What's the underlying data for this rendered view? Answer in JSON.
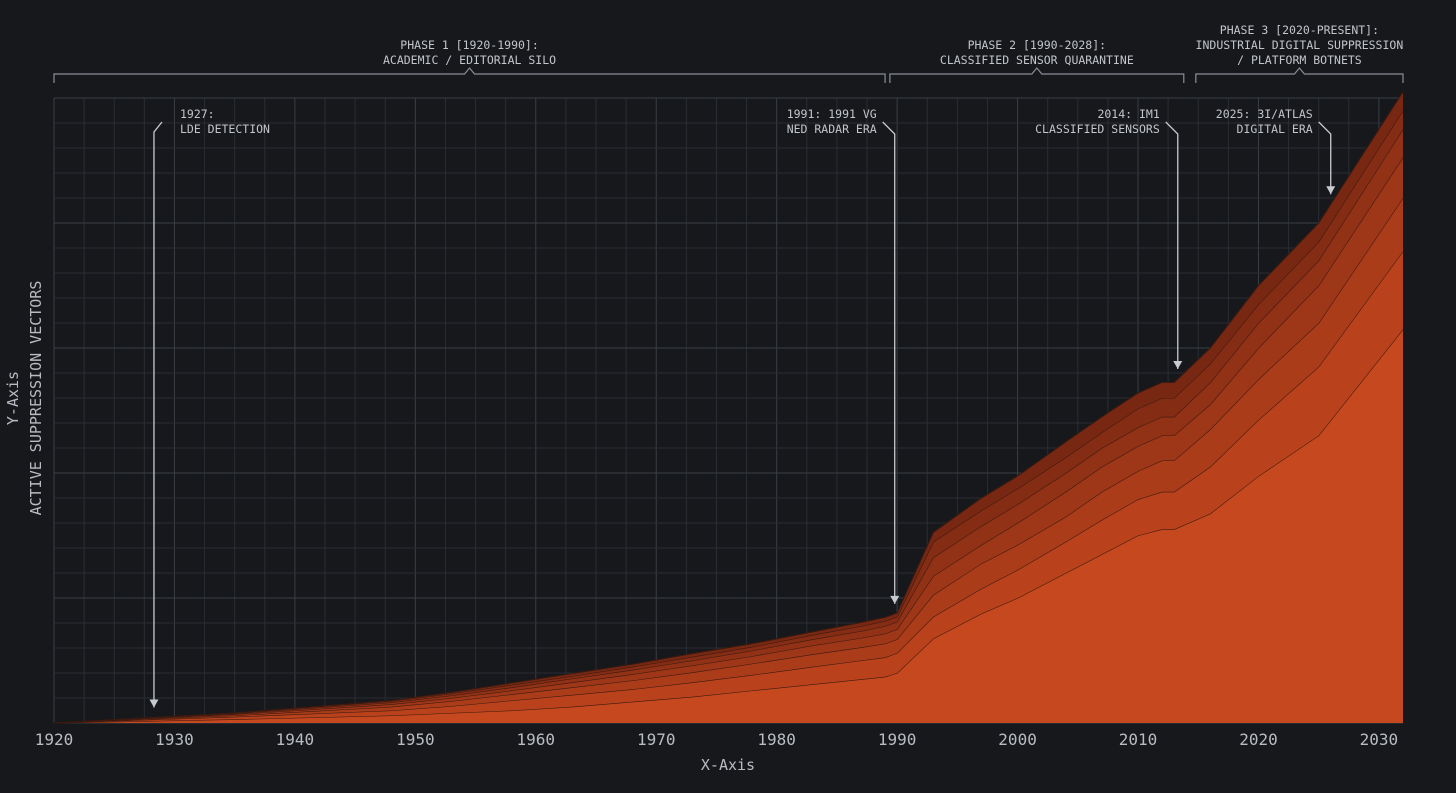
{
  "chart_data": {
    "type": "area",
    "title": "",
    "xlabel": "X-Axis",
    "ylabel_lines": [
      "Y-Axis",
      "ACTIVE SUPPRESSION VECTORS"
    ],
    "xlim": [
      1920,
      2032
    ],
    "ylim": [
      0,
      100
    ],
    "x_ticks": [
      1920,
      1930,
      1940,
      1950,
      1960,
      1970,
      1980,
      1990,
      2000,
      2010,
      2020,
      2030
    ],
    "grid": true,
    "stacked": true,
    "x": [
      1920,
      1935,
      1948,
      1953,
      1958,
      1963,
      1968,
      1973,
      1978,
      1983,
      1987,
      1989,
      1990,
      1993,
      1997,
      2000,
      2004,
      2007,
      2010,
      2012,
      2013,
      2016,
      2020,
      2025,
      2032
    ],
    "series": [
      {
        "values": [
          0.0,
          0.6,
          1.2,
          1.6,
          2.0,
          2.6,
          3.4,
          4.2,
          5.2,
          6.2,
          7.0,
          7.4,
          8.0,
          13.5,
          17.5,
          20.0,
          24.0,
          27.0,
          30.0,
          31.0,
          31.0,
          33.5,
          39.5,
          46.0,
          63.0
        ]
      },
      {
        "values": [
          0.0,
          0.4,
          0.8,
          1.1,
          1.6,
          1.9,
          2.0,
          2.3,
          2.5,
          2.8,
          3.0,
          3.1,
          3.2,
          3.5,
          4.0,
          4.5,
          5.0,
          5.5,
          5.8,
          6.0,
          6.0,
          7.5,
          9.0,
          11.0,
          12.5
        ]
      },
      {
        "values": [
          0.0,
          0.2,
          0.6,
          0.8,
          1.0,
          1.2,
          1.4,
          1.6,
          1.8,
          2.0,
          2.1,
          2.2,
          2.2,
          3.5,
          4.0,
          4.0,
          4.0,
          4.5,
          4.5,
          5.0,
          5.0,
          6.0,
          6.5,
          7.0,
          8.5
        ]
      },
      {
        "values": [
          0.0,
          0.2,
          0.4,
          0.5,
          0.6,
          0.8,
          1.0,
          1.1,
          1.2,
          1.4,
          1.5,
          1.6,
          1.6,
          3.0,
          3.0,
          3.5,
          4.0,
          4.0,
          4.0,
          4.0,
          4.0,
          4.0,
          5.0,
          6.0,
          6.5
        ]
      },
      {
        "values": [
          0.0,
          0.1,
          0.3,
          0.4,
          0.5,
          0.6,
          0.7,
          0.8,
          0.9,
          1.0,
          1.1,
          1.2,
          1.2,
          3.0,
          3.0,
          3.0,
          3.0,
          3.0,
          3.0,
          3.0,
          3.0,
          3.5,
          4.0,
          4.0,
          4.5
        ]
      },
      {
        "values": [
          0.0,
          0.1,
          0.2,
          0.3,
          0.4,
          0.4,
          0.5,
          0.6,
          0.6,
          0.7,
          0.8,
          0.8,
          0.8,
          2.5,
          2.5,
          2.5,
          2.5,
          2.5,
          3.0,
          3.0,
          3.0,
          3.0,
          3.0,
          3.0,
          3.0
        ]
      },
      {
        "values": [
          0.0,
          0.0,
          0.1,
          0.2,
          0.3,
          0.4,
          0.4,
          0.5,
          0.5,
          0.5,
          0.6,
          0.6,
          0.6,
          1.5,
          2.0,
          2.0,
          2.5,
          2.5,
          2.5,
          2.5,
          2.5,
          2.5,
          3.0,
          3.0,
          3.0
        ]
      }
    ],
    "colors": {
      "background": "#16181c",
      "grid_minor": "#2a2d33",
      "grid_major": "#3a3e45",
      "text": "#b9bcc2",
      "bracket": "#8a8e95",
      "arrow": "#c7cacf",
      "series_fill": [
        "#c6481f",
        "#b9421c",
        "#ab3c1a",
        "#9e3618",
        "#913116",
        "#842c14",
        "#782812"
      ],
      "boundary_line": "#3a1a10"
    },
    "phases": [
      {
        "lines": [
          "PHASE 1 [1920-1990]:",
          "ACADEMIC / EDITORIAL SILO"
        ],
        "range": [
          1920,
          1989
        ]
      },
      {
        "lines": [
          "PHASE 2 [1990-2028]:",
          "CLASSIFIED SENSOR QUARANTINE"
        ],
        "range": [
          1989.4,
          2013.8
        ]
      },
      {
        "lines": [
          "PHASE 3 [2020-PRESENT]:",
          "INDUSTRIAL DIGITAL SUPPRESSION",
          "/ PLATFORM BOTNETS"
        ],
        "range": [
          2014.8,
          2032
        ]
      }
    ],
    "annotations": [
      {
        "lines": [
          "1927:",
          "LDE DETECTION"
        ],
        "x": 1928.3,
        "align": "left"
      },
      {
        "lines": [
          "1991: 1991 VG",
          "NED RADAR ERA"
        ],
        "x": 1989.8,
        "align": "right"
      },
      {
        "lines": [
          "2014: IM1",
          "CLASSIFIED SENSORS"
        ],
        "x": 2013.3,
        "align": "right"
      },
      {
        "lines": [
          "2025: 3I/ATLAS",
          "DIGITAL ERA"
        ],
        "x": 2026.0,
        "align": "right"
      }
    ]
  }
}
